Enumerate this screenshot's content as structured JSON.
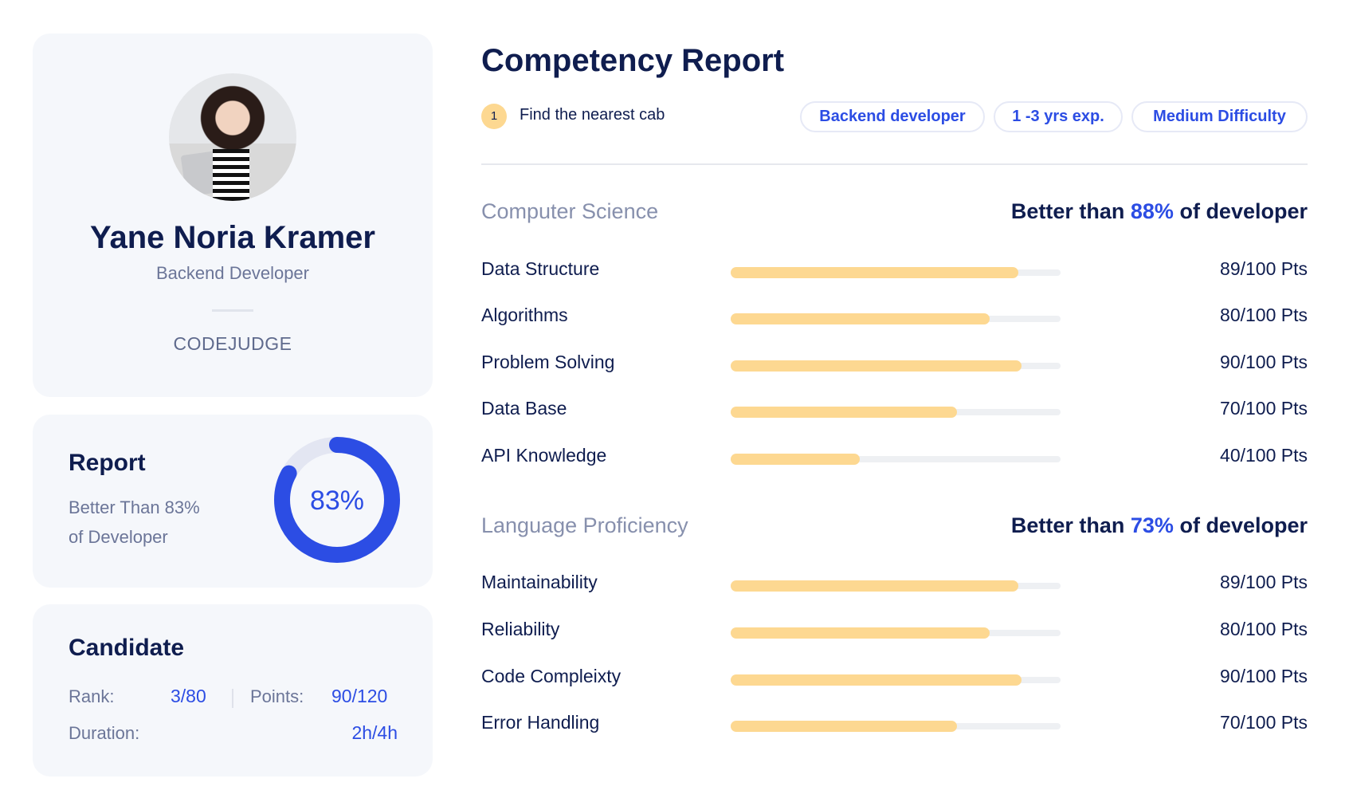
{
  "profile": {
    "name": "Yane Noria Kramer",
    "role": "Backend Developer",
    "org": "CODEJUDGE"
  },
  "report": {
    "title": "Report",
    "description_line1": "Better Than 83%",
    "description_line2": "of Developer",
    "percent": 83,
    "percent_label": "83%",
    "color": "#2c4de4",
    "track_color": "#e3e6f2"
  },
  "candidate": {
    "title": "Candidate",
    "rank_label": "Rank:",
    "rank_value": "3/80",
    "points_label": "Points:",
    "points_value": "90/120",
    "duration_label": "Duration:",
    "duration_value": "2h/4h"
  },
  "header": {
    "title": "Competency Report",
    "step_number": "1",
    "task": "Find the nearest cab",
    "chips": [
      "Backend developer",
      "1 -3 yrs exp.",
      "Medium Difficulty"
    ]
  },
  "sections": [
    {
      "name": "Computer Science",
      "better_prefix": "Better than",
      "better_pct": "88%",
      "better_suffix": "of developer",
      "items": [
        {
          "label": "Data Structure",
          "value": 89,
          "text": "89/100 Pts"
        },
        {
          "label": "Algorithms",
          "value": 80,
          "text": "80/100 Pts"
        },
        {
          "label": "Problem Solving",
          "value": 90,
          "text": "90/100 Pts"
        },
        {
          "label": "Data Base",
          "value": 70,
          "text": "70/100 Pts"
        },
        {
          "label": "API Knowledge",
          "value": 40,
          "text": "40/100 Pts"
        }
      ]
    },
    {
      "name": "Language Proficiency",
      "better_prefix": "Better than",
      "better_pct": "73%",
      "better_suffix": "of developer",
      "items": [
        {
          "label": "Maintainability",
          "value": 89,
          "text": "89/100 Pts"
        },
        {
          "label": "Reliability",
          "value": 80,
          "text": "80/100 Pts"
        },
        {
          "label": "Code Compleixty",
          "value": 90,
          "text": "90/100 Pts"
        },
        {
          "label": "Error Handling",
          "value": 70,
          "text": "70/100 Pts"
        }
      ]
    }
  ]
}
